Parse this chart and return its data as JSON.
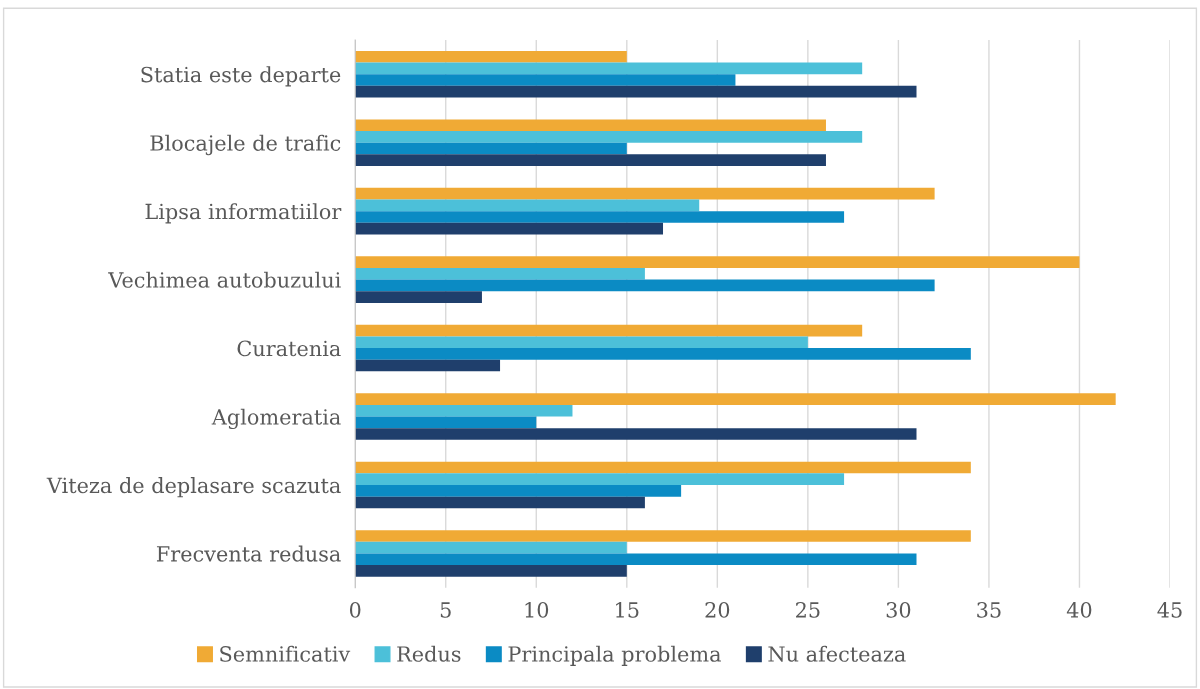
{
  "chart_data": {
    "type": "bar",
    "orientation": "horizontal",
    "categories": [
      "Statia este departe",
      "Blocajele de trafic",
      "Lipsa informatiilor",
      "Vechimea autobuzului",
      "Curatenia",
      "Aglomeratia",
      "Viteza de deplasare scazuta",
      "Frecventa redusa"
    ],
    "series": [
      {
        "name": "Semnificativ",
        "color": "#f0aa35",
        "values": [
          15,
          26,
          32,
          40,
          28,
          42,
          34,
          34
        ]
      },
      {
        "name": "Redus",
        "color": "#4cc0d9",
        "values": [
          28,
          28,
          19,
          16,
          25,
          12,
          27,
          15
        ]
      },
      {
        "name": "Principala problema",
        "color": "#0b8bc4",
        "values": [
          21,
          15,
          27,
          32,
          34,
          10,
          18,
          31
        ]
      },
      {
        "name": "Nu afecteaza",
        "color": "#1f3f6c",
        "values": [
          31,
          26,
          17,
          7,
          8,
          31,
          16,
          15
        ]
      }
    ],
    "xlim": [
      0,
      45
    ],
    "xticks": [
      0,
      5,
      10,
      15,
      20,
      25,
      30,
      35,
      40,
      45
    ],
    "grid": "x",
    "legend": "bottom"
  }
}
